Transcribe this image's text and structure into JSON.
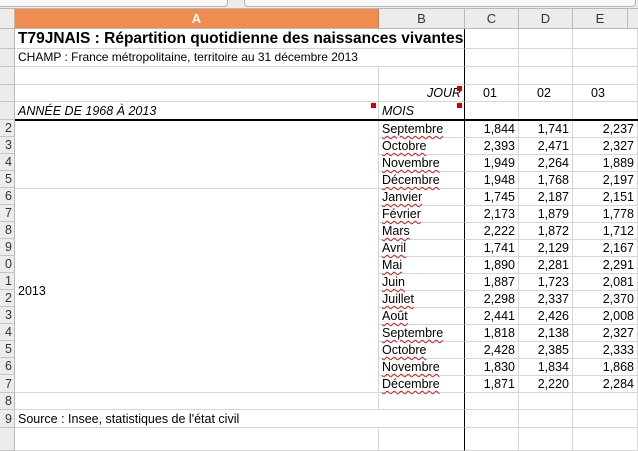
{
  "spreadsheet": {
    "column_headers": [
      "A",
      "B",
      "C",
      "D",
      "E"
    ],
    "row_headers": [
      "2",
      "3",
      "4",
      "5",
      "6",
      "7",
      "8",
      "9",
      "0",
      "1",
      "2",
      "3",
      "4",
      "5",
      "6",
      "7",
      "8",
      "9"
    ],
    "title": "T79JNAIS : Répartition quotidienne des naissances vivantes",
    "subtitle": "CHAMP : France métropolitaine, territoire au 31 décembre 2013",
    "jour_label": "JOUR",
    "annee_label": "ANNÉE DE 1968 À 2013",
    "mois_label": "MOIS",
    "day_headers": [
      "01",
      "02",
      "03"
    ],
    "year": "2013",
    "rows": [
      {
        "month": "Septembre",
        "values": [
          "1,844",
          "1,741",
          "2,237"
        ]
      },
      {
        "month": "Octobre",
        "values": [
          "2,393",
          "2,471",
          "2,327"
        ]
      },
      {
        "month": "Novembre",
        "values": [
          "1,949",
          "2,264",
          "1,889"
        ]
      },
      {
        "month": "Décembre",
        "values": [
          "1,948",
          "1,768",
          "2,197"
        ]
      },
      {
        "month": "Janvier",
        "values": [
          "1,745",
          "2,187",
          "2,151"
        ]
      },
      {
        "month": "Février",
        "values": [
          "2,173",
          "1,879",
          "1,778"
        ]
      },
      {
        "month": "Mars",
        "values": [
          "2,222",
          "1,872",
          "1,712"
        ]
      },
      {
        "month": "Avril",
        "values": [
          "1,741",
          "2,129",
          "2,167"
        ]
      },
      {
        "month": "Mai",
        "values": [
          "1,890",
          "2,281",
          "2,291"
        ]
      },
      {
        "month": "Juin",
        "values": [
          "1,887",
          "1,723",
          "2,081"
        ]
      },
      {
        "month": "Juillet",
        "values": [
          "2,298",
          "2,337",
          "2,370"
        ]
      },
      {
        "month": "Août",
        "values": [
          "2,441",
          "2,426",
          "2,008"
        ]
      },
      {
        "month": "Septembre",
        "values": [
          "1,818",
          "2,138",
          "2,327"
        ]
      },
      {
        "month": "Octobre",
        "values": [
          "2,428",
          "2,385",
          "2,333"
        ]
      },
      {
        "month": "Novembre",
        "values": [
          "1,830",
          "1,834",
          "1,868"
        ]
      },
      {
        "month": "Décembre",
        "values": [
          "1,871",
          "2,220",
          "2,284"
        ]
      }
    ],
    "source": "Source : Insee, statistiques de l'état civil",
    "colors": {
      "active_column": "#f08c50",
      "header_bg": "#ececeb",
      "comment_marker": "#d00000"
    }
  }
}
